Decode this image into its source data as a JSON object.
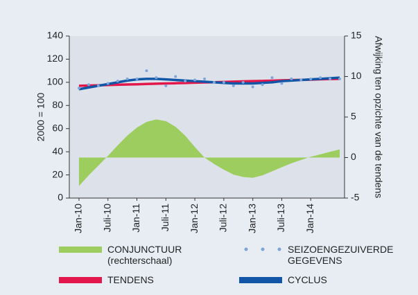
{
  "chart_data": {
    "type": "line",
    "y_label": "2000 = 100",
    "y2_label": "Afwijking ten opzichte van de tendens",
    "x": [
      "2010-01",
      "2010-03",
      "2010-05",
      "2010-07",
      "2010-09",
      "2010-11",
      "2011-01",
      "2011-03",
      "2011-05",
      "2011-07",
      "2011-09",
      "2011-11",
      "2012-01",
      "2012-03",
      "2012-05",
      "2012-07",
      "2012-09",
      "2012-11",
      "2013-01",
      "2013-03",
      "2013-05",
      "2013-07",
      "2013-09",
      "2013-11",
      "2014-01",
      "2014-03",
      "2014-05",
      "2014-07"
    ],
    "xlim": [
      "2009-11",
      "2014-08"
    ],
    "xticks": [
      {
        "value": "2010-01",
        "label": "Jan-10"
      },
      {
        "value": "2010-07",
        "label": "Juli-10"
      },
      {
        "value": "2011-01",
        "label": "Jan-11"
      },
      {
        "value": "2011-07",
        "label": "Juli-11"
      },
      {
        "value": "2012-01",
        "label": "Jan-12"
      },
      {
        "value": "2012-07",
        "label": "Juli-12"
      },
      {
        "value": "2013-01",
        "label": "Jan-13"
      },
      {
        "value": "2013-07",
        "label": "Juli-13"
      },
      {
        "value": "2014-01",
        "label": "Jan-14"
      }
    ],
    "ylim": [
      0,
      140
    ],
    "yticks": [
      0,
      20,
      40,
      60,
      80,
      100,
      120,
      140
    ],
    "y2lim": [
      -5,
      15
    ],
    "y2ticks": [
      -5,
      0,
      5,
      10,
      15
    ],
    "series": [
      {
        "name": "CONJUNCTUUR\n(rechterschaal)",
        "type": "area",
        "axis": "y2",
        "color": "#9dcd5e",
        "values": [
          -3.5,
          -2.2,
          -1.0,
          0.2,
          1.5,
          2.7,
          3.7,
          4.4,
          4.7,
          4.5,
          3.8,
          2.7,
          1.3,
          0,
          -0.8,
          -1.5,
          -2.1,
          -2.4,
          -2.5,
          -2.2,
          -1.7,
          -1.2,
          -0.7,
          -0.3,
          0.1,
          0.4,
          0.7,
          1.0
        ]
      },
      {
        "name": "SEIZOENGEZUIVERDE\nGEGEVENS",
        "type": "scatter",
        "color": "#7ea5d9",
        "values": [
          95,
          98,
          97,
          99,
          101,
          103,
          103,
          110,
          104,
          97,
          105,
          101,
          102,
          103,
          100,
          100,
          97,
          100,
          96,
          98,
          104,
          99,
          103,
          102,
          103,
          104,
          103,
          103
        ]
      },
      {
        "name": "TENDENS",
        "type": "line",
        "color": "#e3174b",
        "values": [
          97,
          97.2,
          97.4,
          97.7,
          97.9,
          98.1,
          98.3,
          98.6,
          98.8,
          99,
          99.2,
          99.4,
          99.7,
          99.9,
          100.1,
          100.3,
          100.6,
          100.8,
          101,
          101.2,
          101.4,
          101.7,
          101.9,
          102.1,
          102.3,
          102.6,
          102.8,
          103
        ]
      },
      {
        "name": "CYCLUS",
        "type": "line",
        "color": "#1156a7",
        "values": [
          94,
          95.5,
          97,
          98.5,
          100,
          101.5,
          102.5,
          103,
          103,
          102.5,
          102,
          101.5,
          101,
          100.5,
          100,
          99.5,
          99,
          99,
          99,
          99.5,
          100,
          101,
          101.5,
          102,
          102.5,
          103,
          103.5,
          104
        ]
      }
    ]
  }
}
